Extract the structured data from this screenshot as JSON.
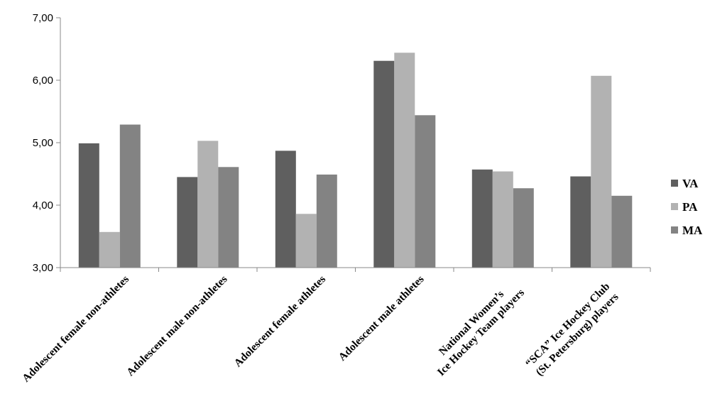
{
  "chart_data": {
    "type": "bar",
    "title": "",
    "xlabel": "",
    "ylabel": "",
    "ylim": [
      3,
      7
    ],
    "yticks": [
      "3,00",
      "4,00",
      "5,00",
      "6,00",
      "7,00"
    ],
    "grid": false,
    "legend_position": "right",
    "categories": [
      [
        "Adolescent female non-athletes"
      ],
      [
        "Adolescent male non-athletes"
      ],
      [
        "Adolescent female athletes"
      ],
      [
        "Adolescent male athletes"
      ],
      [
        "National Women’s",
        "Ice Hockey Team players"
      ],
      [
        "“SCA” Ice Hockey Club",
        "(St. Petersburg) players"
      ]
    ],
    "series": [
      {
        "name": "VA",
        "color": "#5f5f5f",
        "values": [
          4.99,
          4.45,
          4.87,
          6.31,
          4.57,
          4.46
        ]
      },
      {
        "name": "PA",
        "color": "#b2b2b2",
        "values": [
          3.57,
          5.03,
          3.86,
          6.44,
          4.54,
          6.07
        ]
      },
      {
        "name": "MA",
        "color": "#838383",
        "values": [
          5.29,
          4.61,
          4.49,
          5.44,
          4.27,
          4.15
        ]
      }
    ]
  }
}
